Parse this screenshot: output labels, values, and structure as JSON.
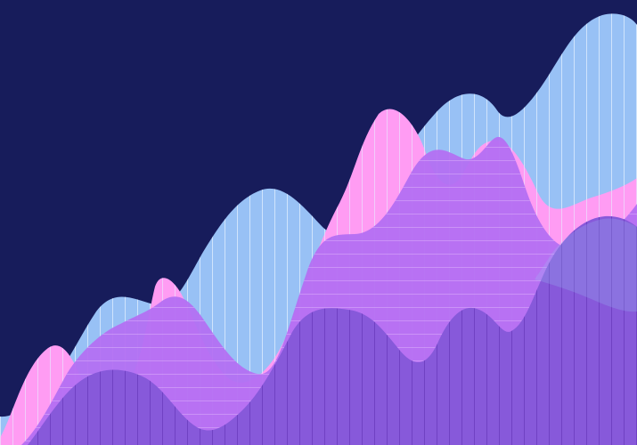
{
  "artwork": {
    "style": "abstract layered wave illustration",
    "colors": {
      "background": "#171c5b",
      "blue_wave": "#98c1f5",
      "pink_wave": "#ff9cf3",
      "violet_wave": "#b46ef2",
      "deep_purple_wave": "#8759da",
      "vertical_stripes": "#e7f1ff",
      "horizontal_stripes": "#f3d7ff",
      "deep_stripes": "#5d2eb1"
    }
  }
}
